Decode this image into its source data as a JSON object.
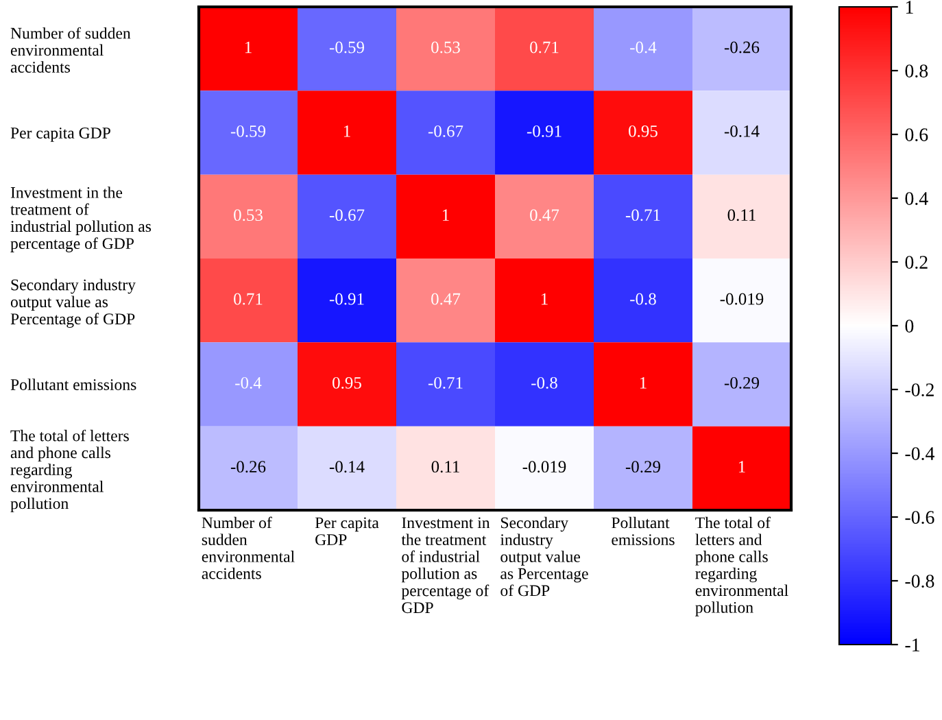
{
  "chart_data": {
    "type": "heatmap",
    "categories": [
      "Number of\nsudden\nenvironmental\naccidents",
      "Per capita\nGDP",
      "Investment in\nthe treatment\nof industrial\npollution as\npercentage of\nGDP",
      "Secondary\nindustry\noutput value\nas Percentage\nof GDP",
      "Pollutant\nemissions",
      "The total of\nletters and\nphone calls\nregarding\nenvironmental\npollution"
    ],
    "y_categories": [
      "Number of sudden\nenvironmental\naccidents",
      "Per capita GDP",
      "Investment in the\ntreatment of\nindustrial pollution as\npercentage of GDP",
      "Secondary industry\noutput value as\nPercentage of GDP",
      "Pollutant emissions",
      "The total of letters\nand phone calls\nregarding\nenvironmental\npollution"
    ],
    "cells": [
      [
        1,
        -0.59,
        0.53,
        0.71,
        -0.4,
        -0.26
      ],
      [
        -0.59,
        1,
        -0.67,
        -0.91,
        0.95,
        -0.14
      ],
      [
        0.53,
        -0.67,
        1,
        0.47,
        -0.71,
        0.11
      ],
      [
        0.71,
        -0.91,
        0.47,
        1,
        -0.8,
        -0.019
      ],
      [
        -0.4,
        0.95,
        -0.71,
        -0.8,
        1,
        -0.29
      ],
      [
        -0.26,
        -0.14,
        0.11,
        -0.019,
        -0.29,
        1
      ]
    ],
    "data_labels": true,
    "clim": [
      -1,
      1
    ],
    "cticks": [
      -1,
      -0.8,
      -0.6,
      -0.4,
      -0.2,
      0,
      0.2,
      0.4,
      0.6,
      0.8,
      1
    ]
  }
}
